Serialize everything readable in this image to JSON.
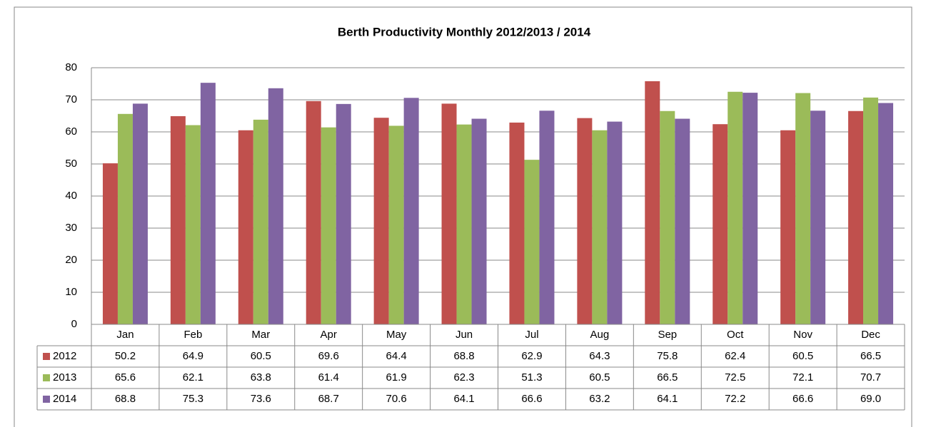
{
  "chart_data": {
    "type": "bar",
    "title": "Berth Productivity Monthly 2012/2013 / 2014",
    "categories": [
      "Jan",
      "Feb",
      "Mar",
      "Apr",
      "May",
      "Jun",
      "Jul",
      "Aug",
      "Sep",
      "Oct",
      "Nov",
      "Dec"
    ],
    "series": [
      {
        "name": "2012",
        "color": "#c0504d",
        "values": [
          50.2,
          64.9,
          60.5,
          69.6,
          64.4,
          68.8,
          62.9,
          64.3,
          75.8,
          62.4,
          60.5,
          66.5
        ]
      },
      {
        "name": "2013",
        "color": "#9bbb59",
        "values": [
          65.6,
          62.1,
          63.8,
          61.4,
          61.9,
          62.3,
          51.3,
          60.5,
          66.5,
          72.5,
          72.1,
          70.7
        ]
      },
      {
        "name": "2014",
        "color": "#8064a2",
        "values": [
          68.8,
          75.3,
          73.6,
          68.7,
          70.6,
          64.1,
          66.6,
          63.2,
          64.1,
          72.2,
          66.6,
          69.0
        ],
        "value_labels": [
          "68.8",
          "75.3",
          "73.6",
          "68.7",
          "70.6",
          "64.1",
          "66.6",
          "63.2",
          "64.1",
          "72.2",
          "66.6",
          "69.0"
        ]
      }
    ],
    "ylim": [
      0,
      80
    ],
    "yticks": [
      0,
      10,
      20,
      30,
      40,
      50,
      60,
      70,
      80
    ],
    "grid": true
  }
}
